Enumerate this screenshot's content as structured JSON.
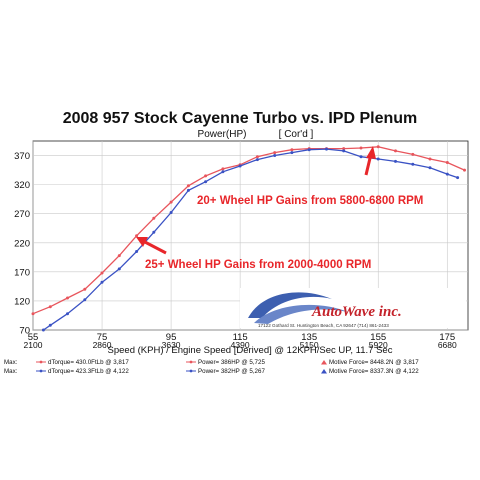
{
  "chart_data": {
    "type": "line",
    "title": "2008 957 Stock Cayenne Turbo vs. IPD Plenum",
    "plot_title": "Power(HP)",
    "plot_title_tag": "[ Cor'd ]",
    "xlabel": "Speed (KPH) / Engine Speed [Derived] @ 12KPH/Sec UP, 11.7 Sec",
    "x_ticks": [
      "55",
      "75",
      "95",
      "115",
      "135",
      "155",
      "175"
    ],
    "rpm_ticks": [
      "2100",
      "2860",
      "3630",
      "4390",
      "5150",
      "5920",
      "6680"
    ],
    "xlim": [
      55,
      181
    ],
    "y_ticks": [
      "70",
      "120",
      "170",
      "220",
      "270",
      "320",
      "370"
    ],
    "ylim": [
      70,
      395
    ],
    "grid": true,
    "series": [
      {
        "color": "#e8555c",
        "x": [
          55,
          60,
          65,
          70,
          75,
          80,
          85,
          90,
          95,
          100,
          105,
          110,
          115,
          120,
          125,
          130,
          135,
          140,
          145,
          150,
          155,
          160,
          165,
          170,
          175,
          180
        ],
        "y": [
          98,
          110,
          125,
          140,
          168,
          198,
          232,
          262,
          290,
          318,
          335,
          347,
          354,
          368,
          375,
          380,
          382,
          382,
          382,
          383,
          385,
          378,
          372,
          364,
          358,
          345
        ]
      },
      {
        "color": "#3a52c4",
        "x": [
          58,
          60,
          65,
          70,
          75,
          80,
          85,
          90,
          95,
          100,
          105,
          110,
          115,
          120,
          125,
          130,
          135,
          140,
          145,
          150,
          155,
          160,
          165,
          170,
          175,
          178
        ],
        "y": [
          70,
          78,
          98,
          122,
          152,
          175,
          205,
          238,
          272,
          310,
          325,
          342,
          352,
          363,
          370,
          375,
          380,
          381,
          378,
          368,
          364,
          360,
          355,
          349,
          338,
          332
        ]
      }
    ],
    "annotations": [
      "20+ Wheel HP Gains from 5800-6800 RPM",
      "25+ Wheel HP Gains from 2000-4000 RPM"
    ]
  },
  "max_rows": [
    {
      "label": "Max:",
      "color": "#e8555c",
      "torque": "dTorque= 430.0FtLb @ 3,817",
      "power": "Power= 386HP @ 5,725",
      "force": "Motive Force= 8448.2N @ 3,817"
    },
    {
      "label": "Max:",
      "color": "#3a52c4",
      "torque": "dTorque= 423.3FtLb @ 4,122",
      "power": "Power= 382HP @ 5,267",
      "force": "Motive Force= 8337.3N @ 4,122"
    }
  ],
  "logo": {
    "name": "AutoWave inc.",
    "address": "17122 Gothard St. Huntington Beach, CA 92647 (714) 861-2433"
  }
}
